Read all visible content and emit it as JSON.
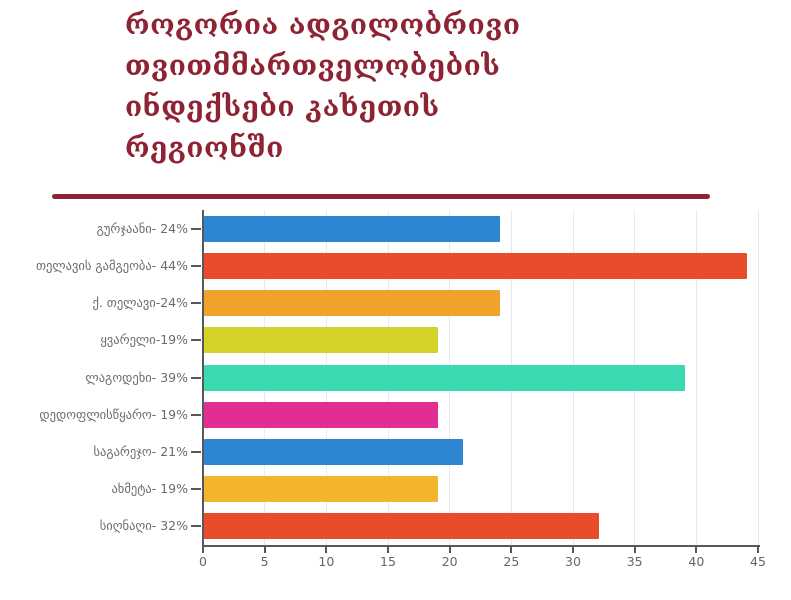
{
  "title": {
    "text": "როგორია ადგილობრივი\nთვითმმართველობების\nინდექსები კახეთის\nრეგიონში",
    "color": "#8e2333"
  },
  "divider": {
    "color": "#8e2333"
  },
  "colors": {
    "axis": "#58585a",
    "gridline": "#e9e9f1",
    "tick_label": "#666666",
    "category_label": "#6b6b6b",
    "background": "#ffffff"
  },
  "chart_data": {
    "type": "bar",
    "orientation": "horizontal",
    "title": "",
    "xlabel": "",
    "ylabel": "",
    "legend": "none",
    "grid": true,
    "xlim": [
      0,
      45
    ],
    "x_ticks": [
      0,
      5,
      10,
      15,
      20,
      25,
      30,
      35,
      40,
      45
    ],
    "categories": [
      "გურჯაანი- 24%",
      "თელავის გამგეობა- 44%",
      "ქ. თელავი-24%",
      "ყვარელი-19%",
      "ლაგოდეხი- 39%",
      "დედოფლისწყარო- 19%",
      "საგარეჯო- 21%",
      "ახმეტა- 19%",
      "სიღნაღი- 32%"
    ],
    "values": [
      24,
      44,
      24,
      19,
      39,
      19,
      21,
      19,
      32
    ],
    "bar_colors": [
      "#2e86d3",
      "#e94b2d",
      "#efa32b",
      "#d2d228",
      "#3bd9b2",
      "#e22d92",
      "#2e86d3",
      "#f2b52d",
      "#e94b2d"
    ]
  }
}
